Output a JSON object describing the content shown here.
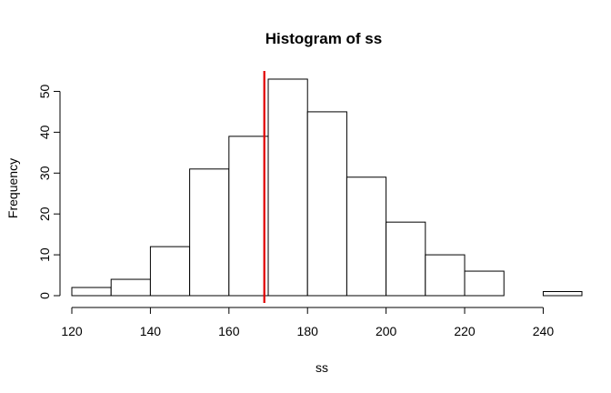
{
  "chart_data": {
    "type": "bar",
    "title": "Histogram of ss",
    "xlabel": "ss",
    "ylabel": "Frequency",
    "bins": [
      {
        "start": 120,
        "end": 130,
        "count": 2
      },
      {
        "start": 130,
        "end": 140,
        "count": 4
      },
      {
        "start": 140,
        "end": 150,
        "count": 12
      },
      {
        "start": 150,
        "end": 160,
        "count": 31
      },
      {
        "start": 160,
        "end": 170,
        "count": 39
      },
      {
        "start": 170,
        "end": 180,
        "count": 53
      },
      {
        "start": 180,
        "end": 190,
        "count": 45
      },
      {
        "start": 190,
        "end": 200,
        "count": 29
      },
      {
        "start": 200,
        "end": 210,
        "count": 18
      },
      {
        "start": 210,
        "end": 220,
        "count": 10
      },
      {
        "start": 220,
        "end": 230,
        "count": 6
      },
      {
        "start": 230,
        "end": 240,
        "count": 0
      },
      {
        "start": 240,
        "end": 250,
        "count": 1
      }
    ],
    "xlim": [
      120,
      248
    ],
    "ylim": [
      0,
      55
    ],
    "xticks": [
      120,
      140,
      160,
      180,
      200,
      220,
      240
    ],
    "xtick_labels": [
      "120",
      "140",
      "160",
      "180",
      "200",
      "220",
      "240"
    ],
    "yticks": [
      0,
      10,
      20,
      30,
      40,
      50
    ],
    "ytick_labels": [
      "0",
      "10",
      "20",
      "30",
      "40",
      "50"
    ],
    "grid": false,
    "reference_line": {
      "x": 169,
      "color": "#e00000"
    },
    "bar_fill": "#ffffff",
    "bar_stroke": "#000000"
  }
}
